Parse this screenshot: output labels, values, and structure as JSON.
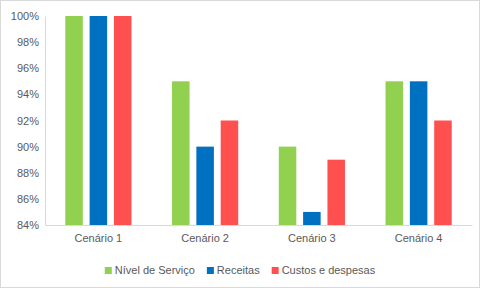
{
  "chart_data": {
    "type": "bar",
    "categories": [
      "Cenário 1",
      "Cenário 2",
      "Cenário 3",
      "Cenário 4"
    ],
    "series": [
      {
        "name": "Nível de Serviço",
        "color": "#92d050",
        "values": [
          100,
          95,
          90,
          95
        ]
      },
      {
        "name": "Receitas",
        "color": "#0070c0",
        "values": [
          100,
          90,
          85,
          95
        ]
      },
      {
        "name": "Custos e despesas",
        "color": "#ff5050",
        "values": [
          100,
          92,
          89,
          92
        ]
      }
    ],
    "ylim": [
      84,
      100
    ],
    "yticks": [
      {
        "value": 84,
        "label": "84%"
      },
      {
        "value": 86,
        "label": "86%"
      },
      {
        "value": 88,
        "label": "88%"
      },
      {
        "value": 90,
        "label": "90%"
      },
      {
        "value": 92,
        "label": "92%"
      },
      {
        "value": 94,
        "label": "94%"
      },
      {
        "value": 96,
        "label": "96%"
      },
      {
        "value": 98,
        "label": "98%"
      },
      {
        "value": 100,
        "label": "100%"
      }
    ],
    "grid": false,
    "legend": "bottom"
  }
}
